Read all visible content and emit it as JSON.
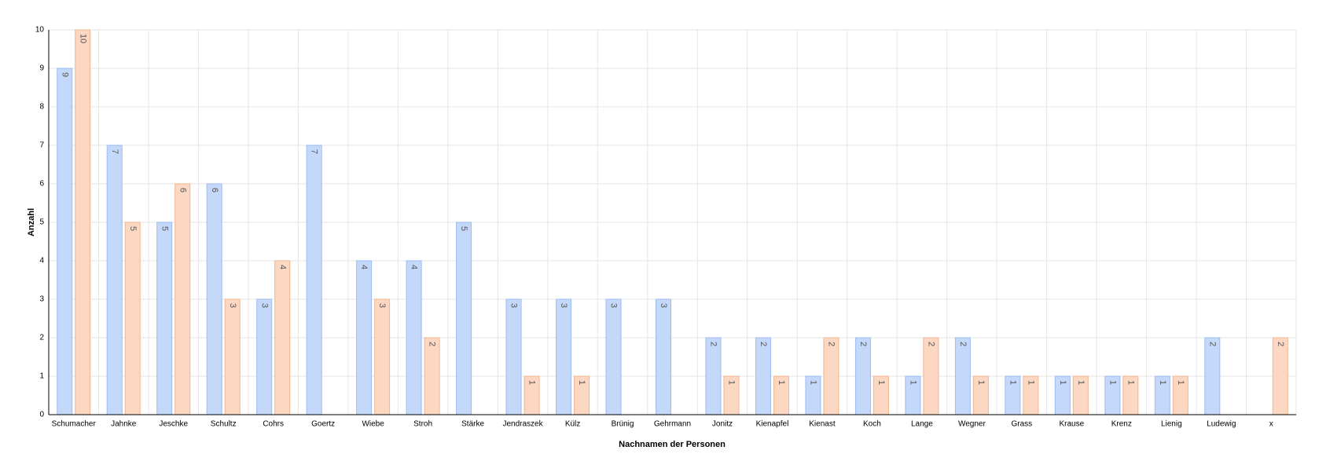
{
  "chart_data": {
    "type": "bar",
    "x_label": "Nachnamen der Personen",
    "y_label": "Anzahl",
    "categories": [
      "Schumacher",
      "Jahnke",
      "Jeschke",
      "Schultz",
      "Cohrs",
      "Goertz",
      "Wiebe",
      "Stroh",
      "Stärke",
      "Jendraszek",
      "Külz",
      "Brünig",
      "Gehrmann",
      "Jonitz",
      "Kienapfel",
      "Kienast",
      "Koch",
      "Lange",
      "Wegner",
      "Grass",
      "Krause",
      "Krenz",
      "Lienig",
      "Ludewig",
      "x"
    ],
    "series": [
      {
        "color": "#c4d8f9",
        "values": [
          9,
          7,
          5,
          6,
          3,
          7,
          4,
          4,
          5,
          3,
          3,
          3,
          3,
          2,
          2,
          1,
          2,
          1,
          2,
          1,
          1,
          1,
          1,
          2,
          null
        ]
      },
      {
        "color": "#fcd8c2",
        "values": [
          10,
          5,
          6,
          3,
          4,
          null,
          3,
          2,
          null,
          1,
          1,
          null,
          null,
          1,
          1,
          2,
          1,
          2,
          1,
          1,
          1,
          1,
          1,
          null,
          2
        ]
      }
    ],
    "ylim": [
      0,
      10
    ],
    "yticks": [
      0,
      1,
      2,
      3,
      4,
      5,
      6,
      7,
      8,
      9,
      10
    ],
    "grid": true
  }
}
